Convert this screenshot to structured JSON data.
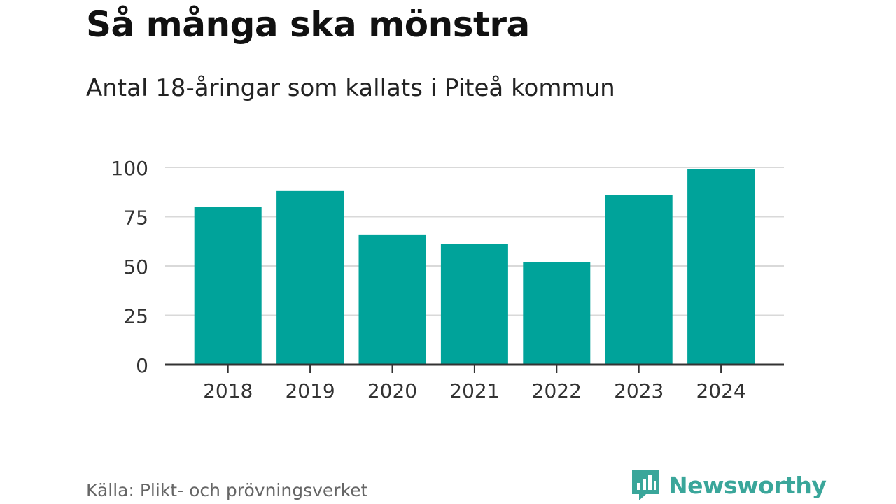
{
  "colors": {
    "bar": "#00a39a",
    "grid": "#d9d9d9",
    "axis": "#333333",
    "tick_text": "#333333",
    "brand": "#3aa69a"
  },
  "header": {
    "title": "Så många ska mönstra",
    "subtitle": "Antal 18-åringar som kallats i Piteå kommun"
  },
  "footer": {
    "source": "Källa: Plikt- och prövningsverket",
    "brand_name": "Newsworthy",
    "brand_icon": "newsworthy-logo-icon"
  },
  "chart_data": {
    "type": "bar",
    "title": "Så många ska mönstra",
    "subtitle": "Antal 18-åringar som kallats i Piteå kommun",
    "categories": [
      "2018",
      "2019",
      "2020",
      "2021",
      "2022",
      "2023",
      "2024"
    ],
    "values": [
      80,
      88,
      66,
      61,
      52,
      86,
      99
    ],
    "ylim": [
      0,
      100
    ],
    "yticks": [
      0,
      25,
      50,
      75,
      100
    ],
    "xlabel": "",
    "ylabel": "",
    "grid": true,
    "legend": "none"
  }
}
